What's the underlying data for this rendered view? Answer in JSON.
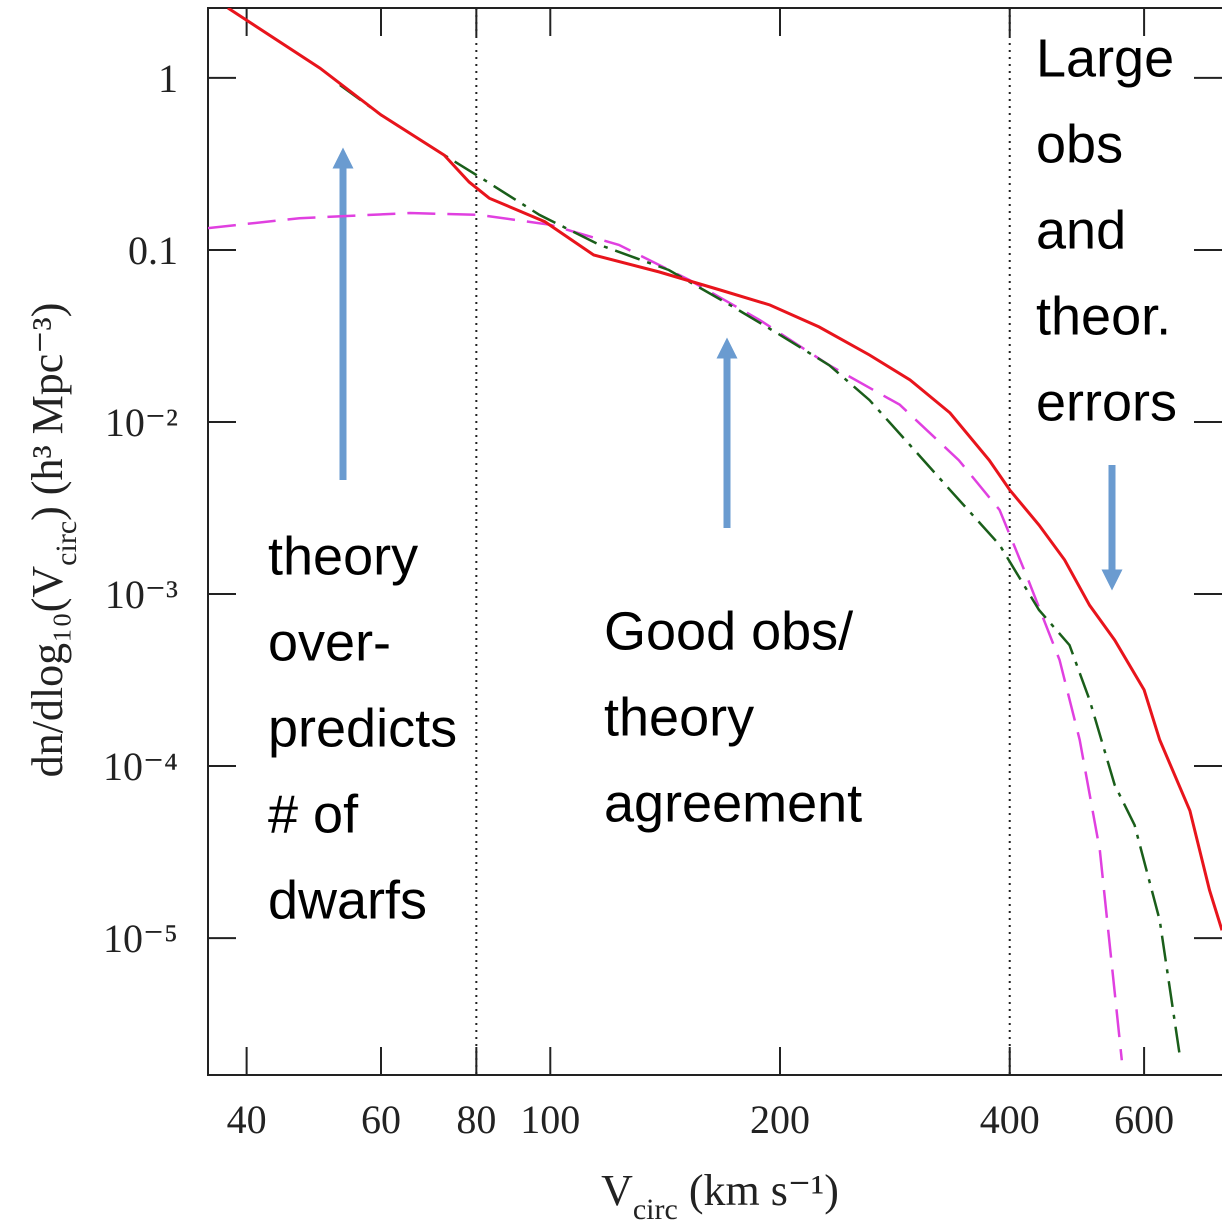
{
  "chart_data": {
    "type": "line",
    "xscale": "log",
    "yscale": "log",
    "xlabel": {
      "main": "V",
      "sub": "circ",
      "rest": " (km s⁻¹)"
    },
    "ylabel": {
      "main": "dn/dlog₁₀(V",
      "sub": "circ",
      "rest": ")  (h³ Mpc⁻³)"
    },
    "xlim": [
      35.6,
      759
    ],
    "ylim": [
      1.6e-06,
      2.55
    ],
    "xticks": [
      40,
      60,
      80,
      100,
      200,
      400,
      600
    ],
    "yticks": [
      1,
      0.1,
      {
        "value": 0.01,
        "label": "10⁻²"
      },
      {
        "value": 0.001,
        "label": "10⁻³"
      },
      {
        "value": 0.0001,
        "label": "10⁻⁴"
      },
      {
        "value": 1e-05,
        "label": "10⁻⁵"
      }
    ],
    "vlines": [
      80,
      400
    ],
    "series": [
      {
        "color": "#e8141c",
        "style": "solid",
        "x": [
          37.8,
          49.9,
          60,
          72.6,
          78.3,
          83.2,
          98.4,
          114,
          139,
          167,
          194,
          225,
          262,
          296,
          334,
          376,
          400,
          437,
          472,
          509,
          549,
          600,
          629,
          689,
          731,
          759
        ],
        "values": [
          2.55,
          1.14,
          0.61,
          0.356,
          0.248,
          0.2,
          0.146,
          0.0935,
          0.0745,
          0.0585,
          0.0479,
          0.0357,
          0.0245,
          0.0176,
          0.0113,
          0.006,
          0.00403,
          0.00252,
          0.00158,
          0.00086,
          0.00054,
          0.000277,
          0.000142,
          5.5e-05,
          1.9e-05,
          1.11e-05
        ]
      },
      {
        "color": "#1a5e1a",
        "style": "dashdot",
        "x": [
          53,
          60,
          72.6,
          80,
          96.8,
          116,
          143,
          172,
          200,
          232,
          262,
          296,
          334,
          388,
          437,
          479,
          509,
          549,
          583,
          629,
          668
        ],
        "values": [
          0.91,
          0.61,
          0.356,
          0.273,
          0.16,
          0.107,
          0.0765,
          0.0479,
          0.0321,
          0.0214,
          0.0134,
          0.00735,
          0.00403,
          0.00193,
          0.000807,
          0.000505,
          0.000242,
          7.76e-05,
          4.54e-05,
          1.27e-05,
          2.09e-06
        ]
      },
      {
        "color": "#e040e0",
        "style": "dashed",
        "x": [
          35.6,
          46.9,
          65.5,
          80.7,
          100,
          123,
          152,
          188,
          232,
          287,
          343,
          388,
          423,
          465,
          494,
          525,
          561
        ],
        "values": [
          0.134,
          0.153,
          0.164,
          0.16,
          0.14,
          0.107,
          0.067,
          0.0392,
          0.0214,
          0.0126,
          0.006,
          0.00308,
          0.00121,
          0.000413,
          0.000142,
          3.25e-05,
          1.95e-06
        ]
      }
    ],
    "annotations": [
      {
        "lines": [
          "theory",
          "over-",
          "predicts",
          "# of",
          "dwarfs"
        ]
      },
      {
        "lines": [
          "Good obs/",
          "theory",
          "agreement"
        ]
      },
      {
        "lines": [
          "Large",
          "obs",
          "and",
          "theor.",
          "errors"
        ]
      }
    ]
  }
}
